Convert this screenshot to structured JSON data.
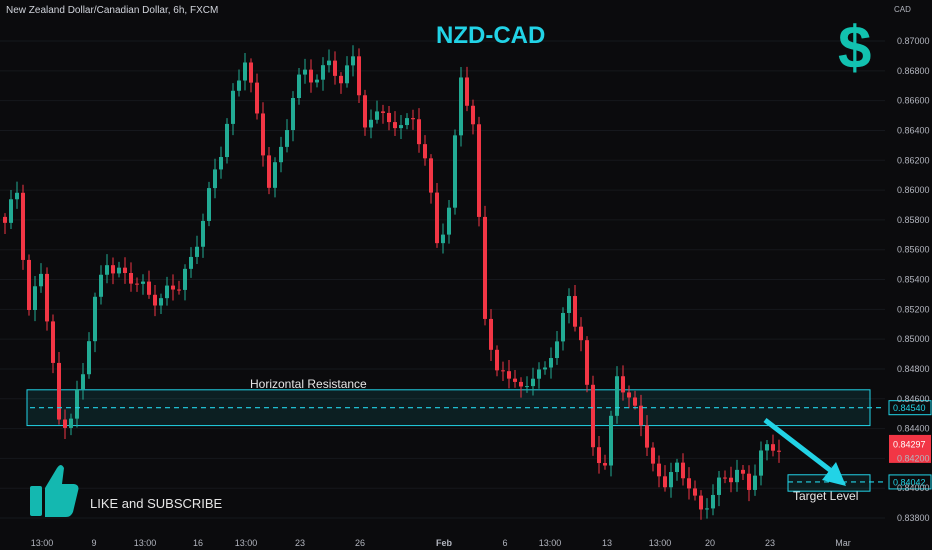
{
  "header": "New Zealand Dollar/Canadian Dollar, 6h, FXCM",
  "title": "NZD-CAD",
  "currency": "CAD",
  "dollar_icon": "dollar-sign-icon",
  "like_text": "LIKE and SUBSCRIBE",
  "thumb_icon": "thumbs-up-icon",
  "colors": {
    "up": "#22ab94",
    "down": "#f23645",
    "accent": "#22d3e6",
    "background": "#0b0b0d"
  },
  "chart_data": {
    "type": "candlestick",
    "title": "NZD-CAD",
    "ylim": [
      0.837,
      0.8718
    ],
    "yticks": [
      0.87,
      0.868,
      0.866,
      0.864,
      0.862,
      0.86,
      0.858,
      0.856,
      0.854,
      0.852,
      0.85,
      0.848,
      0.846,
      0.844,
      0.842,
      0.84,
      0.838
    ],
    "xticks": [
      "13:00",
      "9",
      "13:00",
      "16",
      "13:00",
      "23",
      "26",
      "Feb",
      "6",
      "13:00",
      "13",
      "13:00",
      "20",
      "23",
      "Mar"
    ],
    "anchors": [
      [
        0,
        0.8575
      ],
      [
        2,
        0.86
      ],
      [
        4,
        0.852
      ],
      [
        6,
        0.8545
      ],
      [
        9,
        0.8445
      ],
      [
        11,
        0.845
      ],
      [
        13,
        0.8475
      ],
      [
        15,
        0.8525
      ],
      [
        17,
        0.8555
      ],
      [
        20,
        0.854
      ],
      [
        23,
        0.8535
      ],
      [
        26,
        0.8527
      ],
      [
        29,
        0.8535
      ],
      [
        31,
        0.8555
      ],
      [
        34,
        0.8595
      ],
      [
        36,
        0.8625
      ],
      [
        38,
        0.8665
      ],
      [
        40,
        0.869
      ],
      [
        42,
        0.8645
      ],
      [
        44,
        0.8605
      ],
      [
        46,
        0.863
      ],
      [
        48,
        0.866
      ],
      [
        50,
        0.868
      ],
      [
        52,
        0.8675
      ],
      [
        54,
        0.869
      ],
      [
        56,
        0.8665
      ],
      [
        58,
        0.8695
      ],
      [
        60,
        0.864
      ],
      [
        62,
        0.8655
      ],
      [
        64,
        0.864
      ],
      [
        66,
        0.865
      ],
      [
        68,
        0.8645
      ],
      [
        70,
        0.862
      ],
      [
        72,
        0.8565
      ],
      [
        74,
        0.859
      ],
      [
        76,
        0.8675
      ],
      [
        78,
        0.864
      ],
      [
        80,
        0.852
      ],
      [
        82,
        0.8475
      ],
      [
        84,
        0.8475
      ],
      [
        86,
        0.8465
      ],
      [
        88,
        0.848
      ],
      [
        90,
        0.8475
      ],
      [
        92,
        0.85
      ],
      [
        94,
        0.853
      ],
      [
        96,
        0.85
      ],
      [
        98,
        0.8425
      ],
      [
        100,
        0.8415
      ],
      [
        102,
        0.848
      ],
      [
        104,
        0.8455
      ],
      [
        106,
        0.8445
      ],
      [
        108,
        0.8415
      ],
      [
        110,
        0.8405
      ],
      [
        112,
        0.841
      ],
      [
        114,
        0.8405
      ],
      [
        116,
        0.8385
      ],
      [
        118,
        0.8395
      ],
      [
        120,
        0.8405
      ],
      [
        122,
        0.8415
      ],
      [
        124,
        0.84
      ],
      [
        126,
        0.842
      ],
      [
        128,
        0.843
      ],
      [
        129,
        0.843
      ]
    ],
    "price_levels": [
      {
        "label": "0.84540",
        "value": 0.8454
      },
      {
        "label": "0.84042",
        "value": 0.84042
      }
    ],
    "current_price": "0.84297",
    "annotations": [
      {
        "label": "Horizontal Resistance",
        "range": [
          0.8442,
          0.8466
        ]
      },
      {
        "label": "Target Level",
        "range": [
          0.8398,
          0.8409
        ]
      }
    ]
  }
}
